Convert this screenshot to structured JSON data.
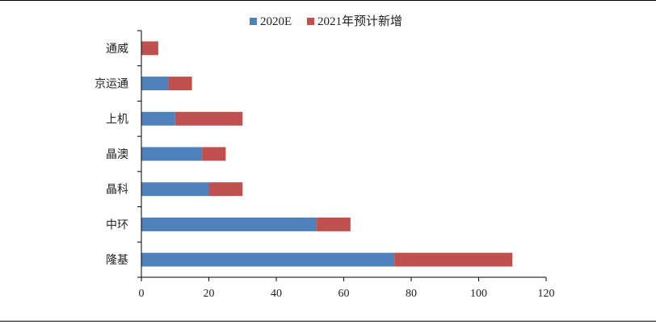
{
  "chart_data": {
    "type": "bar",
    "orientation": "horizontal",
    "stacked": true,
    "categories": [
      "隆基",
      "中环",
      "晶科",
      "晶澳",
      "上机",
      "京运通",
      "通威"
    ],
    "series": [
      {
        "name": "2020E",
        "values": [
          75,
          52,
          20,
          18,
          10,
          8,
          0
        ],
        "color": "#4F81BD"
      },
      {
        "name": "2021年预计新增",
        "values": [
          35,
          10,
          10,
          7,
          20,
          7,
          5
        ],
        "color": "#C0504D"
      }
    ],
    "xlim": [
      0,
      120
    ],
    "xticks": [
      "0",
      "20",
      "40",
      "60",
      "80",
      "100",
      "120"
    ],
    "legend_position": "top",
    "grid": false
  }
}
